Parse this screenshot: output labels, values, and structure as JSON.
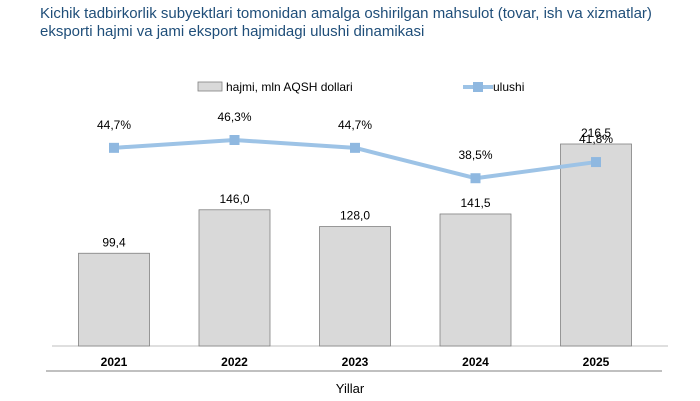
{
  "chart_data": {
    "type": "bar",
    "title": "Kichik tadbirkorlik subyektlari tomonidan amalga oshirilgan mahsulot (tovar, ish va xizmatlar) eksporti hajmi va  jami eksport hajmidagi ulushi dinamikasi",
    "xlabel": "Yillar",
    "categories": [
      "2021",
      "2022",
      "2023",
      "2024",
      "2025"
    ],
    "series": [
      {
        "name": "hajmi, mln AQSH dollari",
        "type": "bar",
        "values": [
          99.4,
          146.0,
          128.0,
          141.5,
          216.5
        ],
        "labels": [
          "99,4",
          "146,0",
          "128,0",
          "141,5",
          "216,5"
        ]
      },
      {
        "name": "ulushi",
        "type": "line",
        "values": [
          44.7,
          46.3,
          44.7,
          38.5,
          41.8
        ],
        "labels": [
          "44,7%",
          "46,3%",
          "44,7%",
          "38,5%",
          "41,8%"
        ]
      }
    ],
    "legend_position": "top",
    "colors": {
      "bar_fill": "#d9d9d9",
      "bar_stroke": "#808080",
      "line": "#9dc3e6",
      "marker": "#8fb8e0",
      "title": "#1f4e79"
    }
  }
}
